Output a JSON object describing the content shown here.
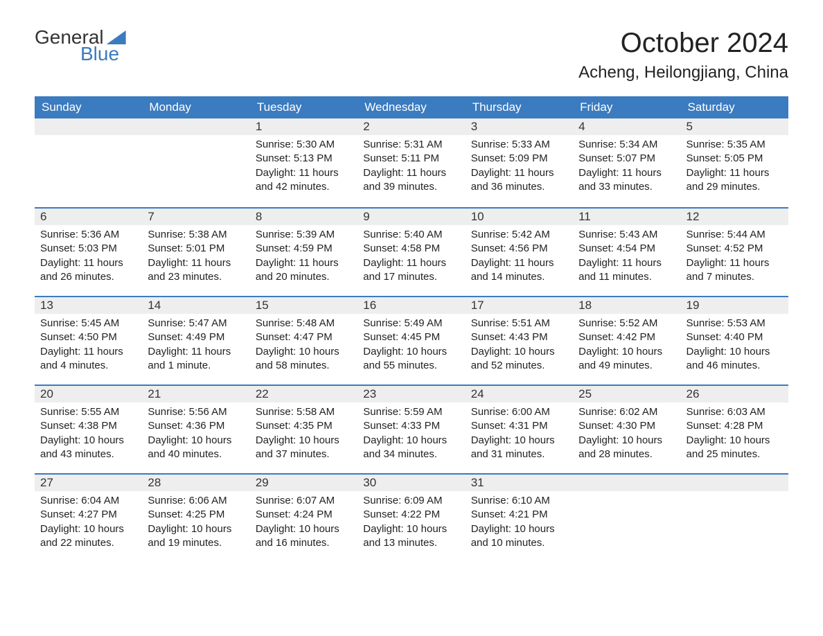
{
  "brand": {
    "word1": "General",
    "word2": "Blue",
    "accent_color": "#3b7bbf"
  },
  "title": "October 2024",
  "location": "Acheng, Heilongjiang, China",
  "colors": {
    "header_bg": "#3b7bbf",
    "header_text": "#ffffff",
    "daynum_bg": "#eeeeee",
    "row_border": "#3b7bbf",
    "body_text": "#222222",
    "page_bg": "#ffffff"
  },
  "typography": {
    "title_fontsize": 40,
    "location_fontsize": 24,
    "header_fontsize": 17,
    "body_fontsize": 15
  },
  "layout": {
    "columns": 7,
    "rows": 5,
    "first_day_column_index": 2
  },
  "weekdays": [
    "Sunday",
    "Monday",
    "Tuesday",
    "Wednesday",
    "Thursday",
    "Friday",
    "Saturday"
  ],
  "labels": {
    "sunrise": "Sunrise",
    "sunset": "Sunset",
    "daylight": "Daylight"
  },
  "days": [
    {
      "n": 1,
      "sunrise": "5:30 AM",
      "sunset": "5:13 PM",
      "daylight": "11 hours and 42 minutes."
    },
    {
      "n": 2,
      "sunrise": "5:31 AM",
      "sunset": "5:11 PM",
      "daylight": "11 hours and 39 minutes."
    },
    {
      "n": 3,
      "sunrise": "5:33 AM",
      "sunset": "5:09 PM",
      "daylight": "11 hours and 36 minutes."
    },
    {
      "n": 4,
      "sunrise": "5:34 AM",
      "sunset": "5:07 PM",
      "daylight": "11 hours and 33 minutes."
    },
    {
      "n": 5,
      "sunrise": "5:35 AM",
      "sunset": "5:05 PM",
      "daylight": "11 hours and 29 minutes."
    },
    {
      "n": 6,
      "sunrise": "5:36 AM",
      "sunset": "5:03 PM",
      "daylight": "11 hours and 26 minutes."
    },
    {
      "n": 7,
      "sunrise": "5:38 AM",
      "sunset": "5:01 PM",
      "daylight": "11 hours and 23 minutes."
    },
    {
      "n": 8,
      "sunrise": "5:39 AM",
      "sunset": "4:59 PM",
      "daylight": "11 hours and 20 minutes."
    },
    {
      "n": 9,
      "sunrise": "5:40 AM",
      "sunset": "4:58 PM",
      "daylight": "11 hours and 17 minutes."
    },
    {
      "n": 10,
      "sunrise": "5:42 AM",
      "sunset": "4:56 PM",
      "daylight": "11 hours and 14 minutes."
    },
    {
      "n": 11,
      "sunrise": "5:43 AM",
      "sunset": "4:54 PM",
      "daylight": "11 hours and 11 minutes."
    },
    {
      "n": 12,
      "sunrise": "5:44 AM",
      "sunset": "4:52 PM",
      "daylight": "11 hours and 7 minutes."
    },
    {
      "n": 13,
      "sunrise": "5:45 AM",
      "sunset": "4:50 PM",
      "daylight": "11 hours and 4 minutes."
    },
    {
      "n": 14,
      "sunrise": "5:47 AM",
      "sunset": "4:49 PM",
      "daylight": "11 hours and 1 minute."
    },
    {
      "n": 15,
      "sunrise": "5:48 AM",
      "sunset": "4:47 PM",
      "daylight": "10 hours and 58 minutes."
    },
    {
      "n": 16,
      "sunrise": "5:49 AM",
      "sunset": "4:45 PM",
      "daylight": "10 hours and 55 minutes."
    },
    {
      "n": 17,
      "sunrise": "5:51 AM",
      "sunset": "4:43 PM",
      "daylight": "10 hours and 52 minutes."
    },
    {
      "n": 18,
      "sunrise": "5:52 AM",
      "sunset": "4:42 PM",
      "daylight": "10 hours and 49 minutes."
    },
    {
      "n": 19,
      "sunrise": "5:53 AM",
      "sunset": "4:40 PM",
      "daylight": "10 hours and 46 minutes."
    },
    {
      "n": 20,
      "sunrise": "5:55 AM",
      "sunset": "4:38 PM",
      "daylight": "10 hours and 43 minutes."
    },
    {
      "n": 21,
      "sunrise": "5:56 AM",
      "sunset": "4:36 PM",
      "daylight": "10 hours and 40 minutes."
    },
    {
      "n": 22,
      "sunrise": "5:58 AM",
      "sunset": "4:35 PM",
      "daylight": "10 hours and 37 minutes."
    },
    {
      "n": 23,
      "sunrise": "5:59 AM",
      "sunset": "4:33 PM",
      "daylight": "10 hours and 34 minutes."
    },
    {
      "n": 24,
      "sunrise": "6:00 AM",
      "sunset": "4:31 PM",
      "daylight": "10 hours and 31 minutes."
    },
    {
      "n": 25,
      "sunrise": "6:02 AM",
      "sunset": "4:30 PM",
      "daylight": "10 hours and 28 minutes."
    },
    {
      "n": 26,
      "sunrise": "6:03 AM",
      "sunset": "4:28 PM",
      "daylight": "10 hours and 25 minutes."
    },
    {
      "n": 27,
      "sunrise": "6:04 AM",
      "sunset": "4:27 PM",
      "daylight": "10 hours and 22 minutes."
    },
    {
      "n": 28,
      "sunrise": "6:06 AM",
      "sunset": "4:25 PM",
      "daylight": "10 hours and 19 minutes."
    },
    {
      "n": 29,
      "sunrise": "6:07 AM",
      "sunset": "4:24 PM",
      "daylight": "10 hours and 16 minutes."
    },
    {
      "n": 30,
      "sunrise": "6:09 AM",
      "sunset": "4:22 PM",
      "daylight": "10 hours and 13 minutes."
    },
    {
      "n": 31,
      "sunrise": "6:10 AM",
      "sunset": "4:21 PM",
      "daylight": "10 hours and 10 minutes."
    }
  ]
}
